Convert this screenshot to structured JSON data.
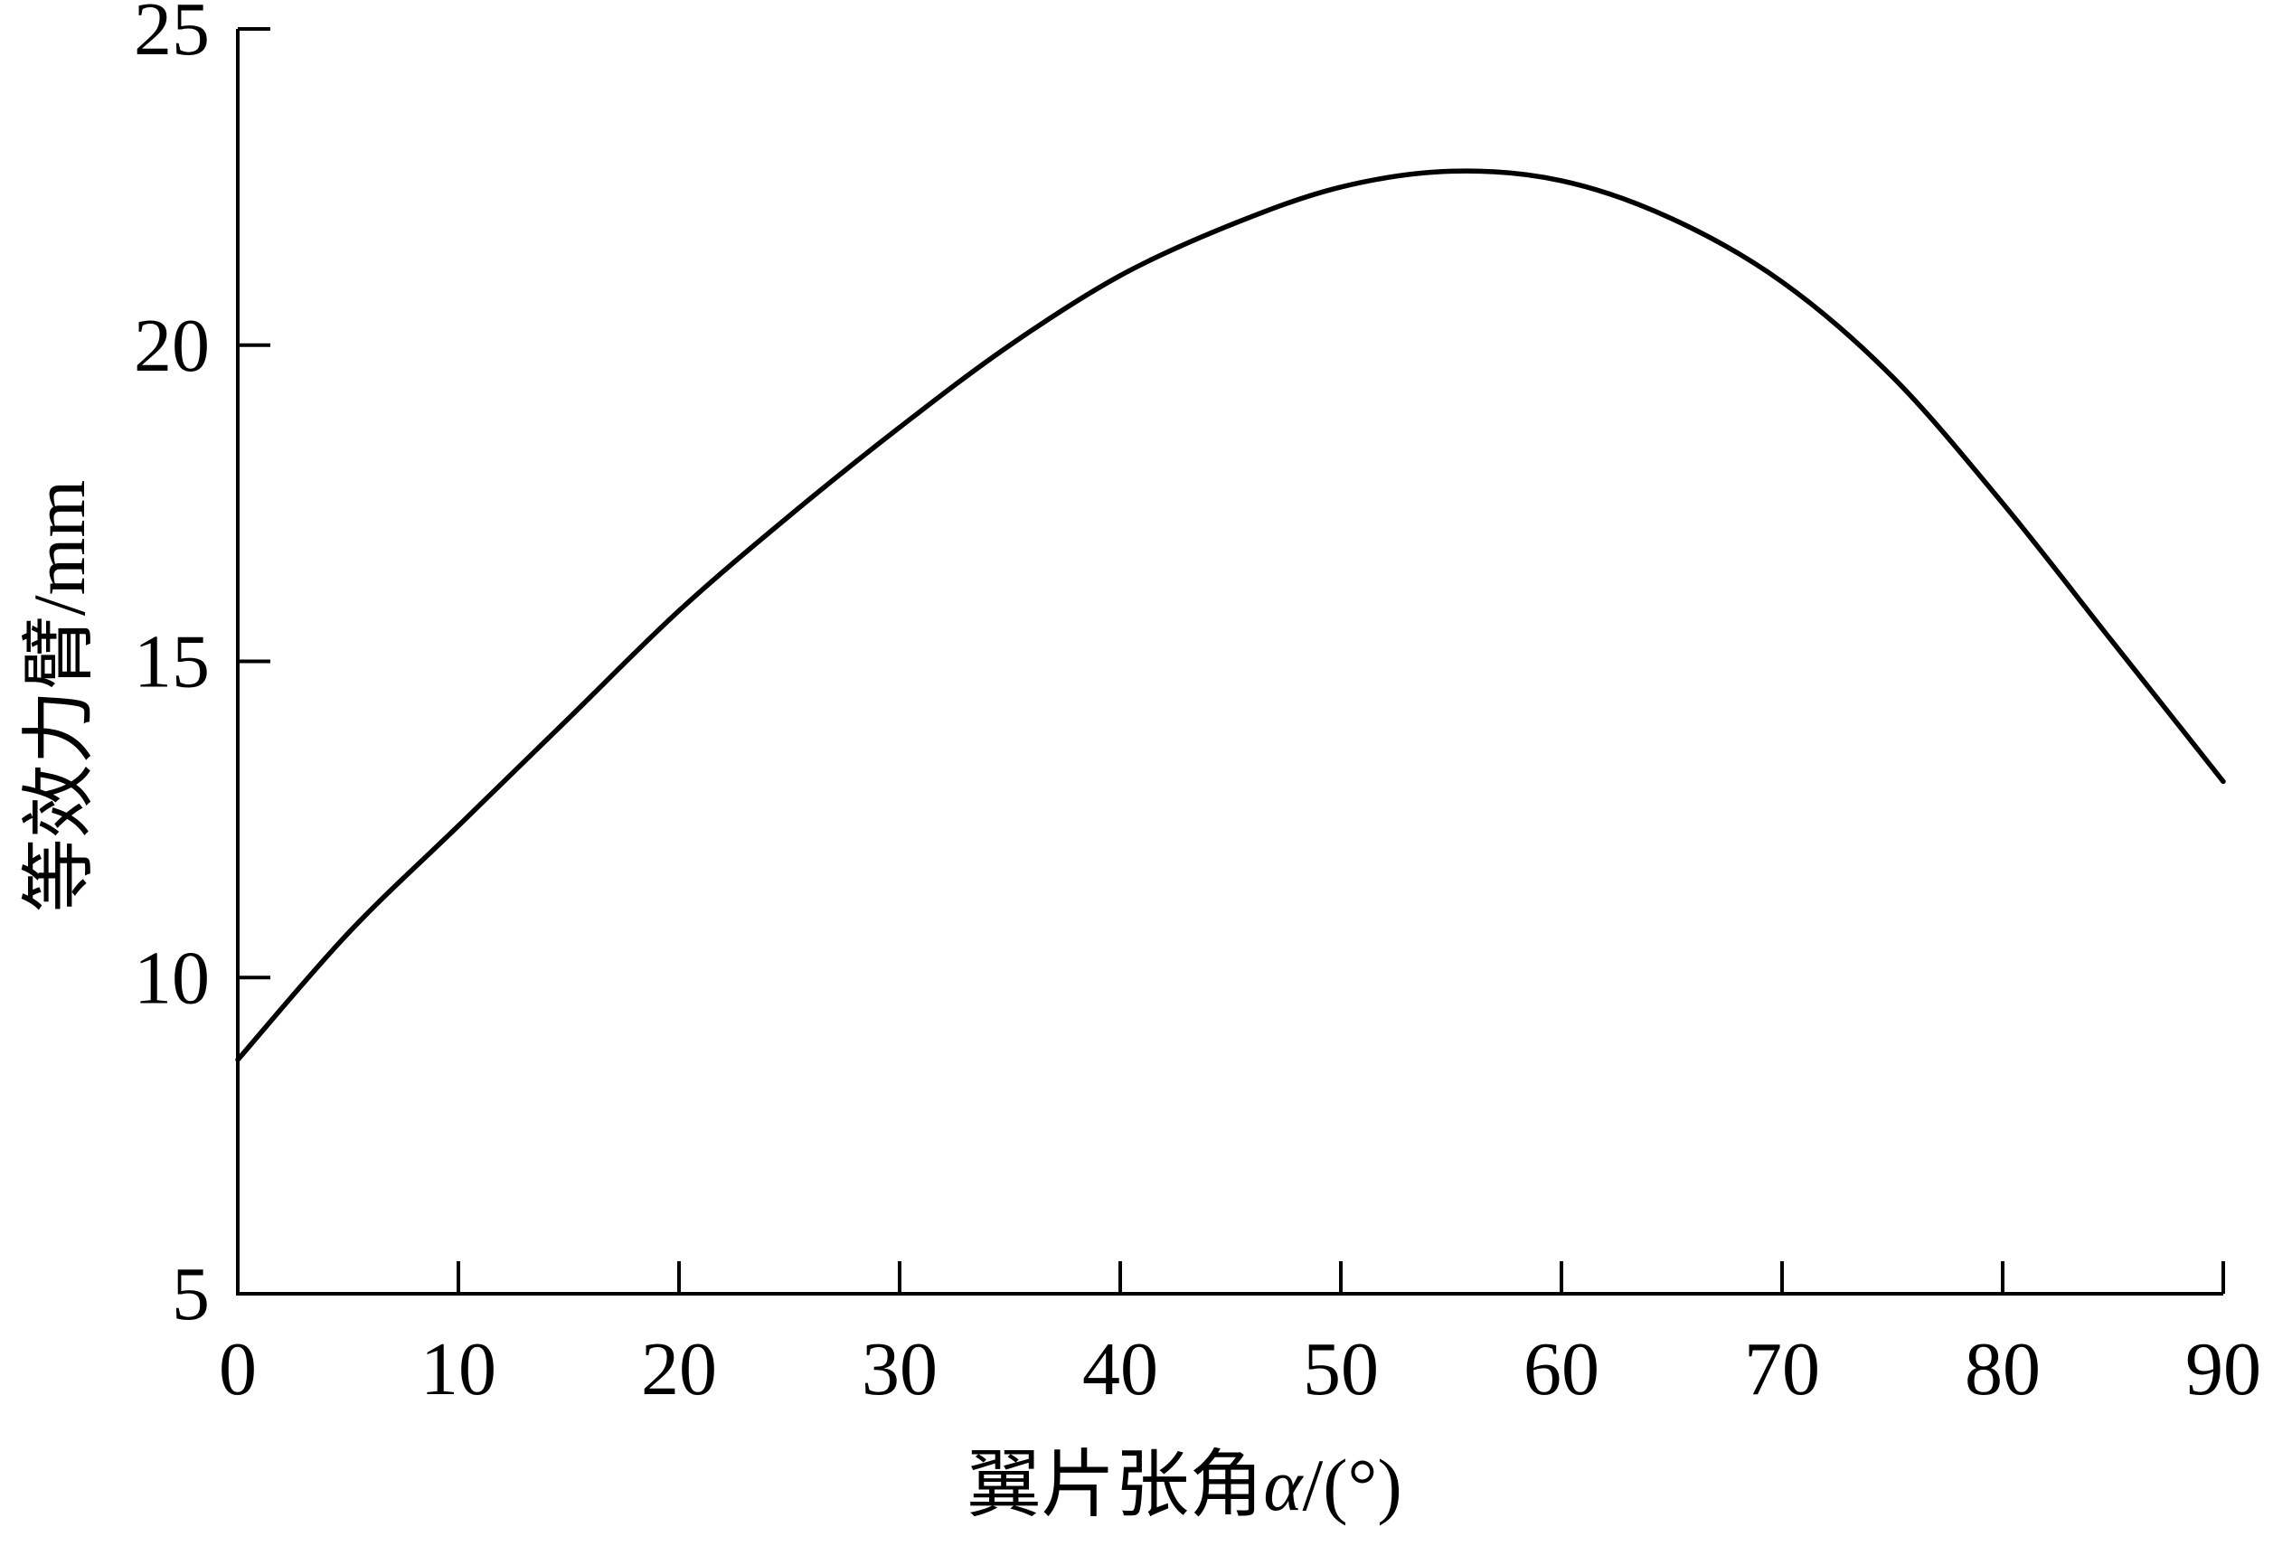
{
  "chart_data": {
    "type": "line",
    "xlabel": {
      "cjk": "翼片张角",
      "symbol": "α",
      "unit": "/(°)"
    },
    "ylabel": {
      "cjk": "等效力臂",
      "unit": "/mm"
    },
    "xlim": [
      0,
      90
    ],
    "ylim": [
      5,
      25
    ],
    "xticks": [
      0,
      10,
      20,
      30,
      40,
      50,
      60,
      70,
      80,
      90
    ],
    "yticks": [
      5,
      10,
      15,
      20,
      25
    ],
    "grid": false,
    "legend": "none",
    "colors": {
      "line": "#000000",
      "axis": "#000000"
    },
    "series": [
      {
        "x": [
          0,
          5,
          10,
          15,
          20,
          25,
          30,
          35,
          40,
          45,
          50,
          55,
          60,
          65,
          70,
          75,
          80,
          85,
          90
        ],
        "y": [
          8.7,
          10.7,
          12.4,
          14.1,
          15.8,
          17.3,
          18.7,
          20.0,
          21.1,
          21.9,
          22.5,
          22.75,
          22.6,
          22.0,
          21.0,
          19.5,
          17.5,
          15.3,
          13.1
        ]
      }
    ]
  }
}
